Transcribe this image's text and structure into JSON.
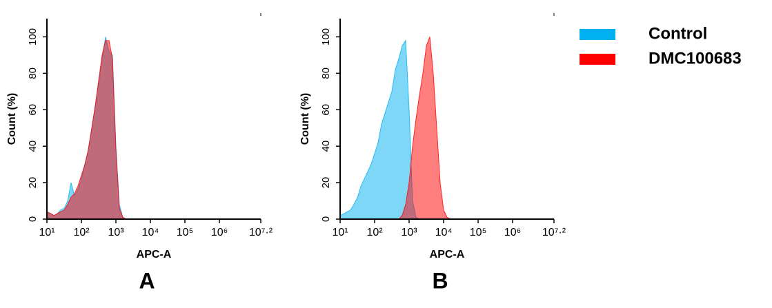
{
  "chart_data": [
    {
      "type": "area",
      "panel_label": "A",
      "xlabel": "APC-A",
      "ylabel": "Count  (%)",
      "xscale": "log",
      "x": [
        10,
        13,
        16,
        20,
        25,
        32,
        40,
        50,
        63,
        79,
        100,
        126,
        158,
        200,
        251,
        316,
        398,
        501,
        631,
        794,
        1000,
        1259,
        1585,
        1995,
        2512,
        3162,
        3981,
        5012,
        6310,
        7943,
        10000,
        12589,
        15849,
        19953,
        25119,
        31623,
        39811,
        50119
      ],
      "series": [
        {
          "color": "#00b0f0",
          "values": [
            4,
            3,
            2,
            3,
            5,
            6,
            10,
            20,
            13,
            16,
            22,
            30,
            38,
            50,
            62,
            75,
            88,
            100,
            92,
            90,
            40,
            8,
            1,
            0,
            0,
            0,
            0,
            0,
            0,
            0,
            0,
            0,
            0,
            0,
            0,
            0,
            0,
            0
          ]
        },
        {
          "color": "#ff0000",
          "values": [
            4,
            3,
            2,
            3,
            4,
            5,
            8,
            12,
            14,
            18,
            24,
            30,
            38,
            50,
            62,
            76,
            90,
            98,
            98,
            88,
            38,
            6,
            1,
            0,
            0,
            0,
            0,
            0,
            0,
            0,
            0,
            0,
            0,
            0,
            0,
            0,
            0,
            0
          ]
        }
      ],
      "xlim": [
        10,
        15848932
      ],
      "xticks": [
        {
          "value": 10,
          "label": "10¹"
        },
        {
          "value": 100,
          "label": "10²"
        },
        {
          "value": 1000,
          "label": "10³"
        },
        {
          "value": 10000,
          "label": "10⁴"
        },
        {
          "value": 100000,
          "label": "10⁵"
        },
        {
          "value": 1000000,
          "label": "10⁶"
        },
        {
          "value": 15848932,
          "label": "10⁷·²"
        }
      ],
      "ylim": [
        0,
        110
      ],
      "yticks": [
        0,
        20,
        40,
        60,
        80,
        100
      ]
    },
    {
      "type": "area",
      "panel_label": "B",
      "xlabel": "APC-A",
      "ylabel": "Count  (%)",
      "xscale": "log",
      "legend": "upper right",
      "x": [
        10,
        13,
        16,
        20,
        25,
        32,
        40,
        50,
        63,
        79,
        100,
        126,
        158,
        200,
        251,
        316,
        398,
        501,
        631,
        794,
        1000,
        1259,
        1585,
        1995,
        2512,
        3162,
        3981,
        5012,
        6310,
        7943,
        10000,
        12589,
        15849,
        19953,
        25119,
        31623,
        39811,
        50119
      ],
      "series": [
        {
          "name": "Control",
          "color": "#00b0f0",
          "values": [
            2,
            3,
            4,
            5,
            8,
            12,
            18,
            22,
            26,
            30,
            36,
            42,
            52,
            58,
            64,
            70,
            82,
            88,
            95,
            98,
            60,
            10,
            1,
            0,
            0,
            0,
            0,
            0,
            0,
            0,
            0,
            0,
            0,
            0,
            0,
            0,
            0,
            0
          ]
        },
        {
          "name": "DMC100683",
          "color": "#ff0000",
          "values": [
            0,
            0,
            0,
            0,
            0,
            0,
            0,
            0,
            0,
            0,
            0,
            0,
            0,
            0,
            0,
            0,
            0,
            0,
            2,
            8,
            20,
            40,
            55,
            68,
            80,
            95,
            100,
            80,
            50,
            20,
            5,
            1,
            0,
            0,
            0,
            0,
            0,
            0
          ]
        }
      ],
      "xlim": [
        10,
        15848932
      ],
      "xticks": [
        {
          "value": 10,
          "label": "10¹"
        },
        {
          "value": 100,
          "label": "10²"
        },
        {
          "value": 1000,
          "label": "10³"
        },
        {
          "value": 10000,
          "label": "10⁴"
        },
        {
          "value": 100000,
          "label": "10⁵"
        },
        {
          "value": 1000000,
          "label": "10⁶"
        },
        {
          "value": 15848932,
          "label": "10⁷·²"
        }
      ],
      "ylim": [
        0,
        110
      ],
      "yticks": [
        0,
        20,
        40,
        60,
        80,
        100
      ]
    }
  ]
}
